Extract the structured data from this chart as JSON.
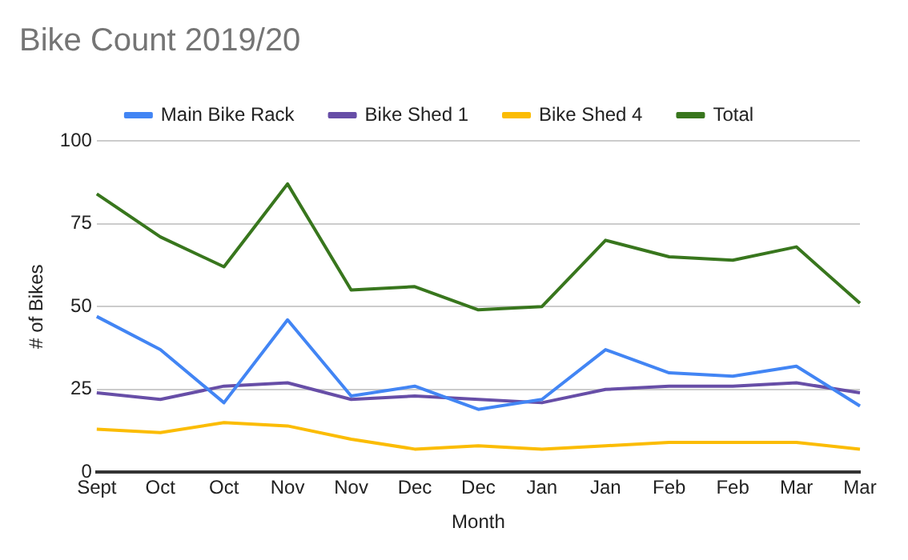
{
  "chart_data": {
    "type": "line",
    "title": "Bike Count 2019/20",
    "xlabel": "Month",
    "ylabel": "# of Bikes",
    "categories": [
      "Sept",
      "Oct",
      "Oct",
      "Nov",
      "Nov",
      "Dec",
      "Dec",
      "Jan",
      "Jan",
      "Feb",
      "Feb",
      "Mar",
      "Mar"
    ],
    "series": [
      {
        "name": "Main Bike Rack",
        "color": "#4285f4",
        "values": [
          47,
          37,
          21,
          46,
          23,
          26,
          19,
          22,
          37,
          30,
          29,
          32,
          20
        ]
      },
      {
        "name": "Bike Shed 1",
        "color": "#674ea7",
        "values": [
          24,
          22,
          26,
          27,
          22,
          23,
          22,
          21,
          25,
          26,
          26,
          27,
          24
        ]
      },
      {
        "name": "Bike Shed 4",
        "color": "#fbbc04",
        "values": [
          13,
          12,
          15,
          14,
          10,
          7,
          8,
          7,
          8,
          9,
          9,
          9,
          7
        ]
      },
      {
        "name": "Total",
        "color": "#38761d",
        "values": [
          84,
          71,
          62,
          87,
          55,
          56,
          49,
          50,
          70,
          65,
          64,
          68,
          51
        ]
      }
    ],
    "ylim": [
      0,
      100
    ],
    "yticks": [
      0,
      25,
      50,
      75,
      100
    ],
    "grid": "y",
    "legend": "top",
    "marker": "none",
    "line_style": "solid"
  }
}
